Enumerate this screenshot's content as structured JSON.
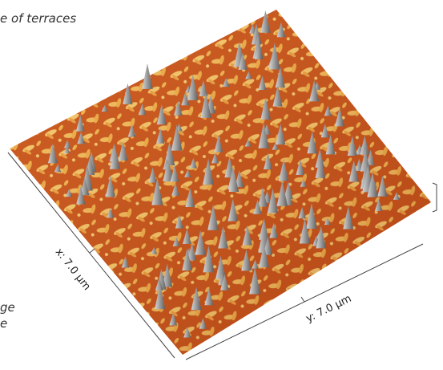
{
  "caption_fragment": "e of terraces",
  "side_text": [
    "ge",
    "e"
  ],
  "axes": {
    "x_label": "x: 7.0 µm",
    "y_label": "y: 7.0 µm"
  }
}
